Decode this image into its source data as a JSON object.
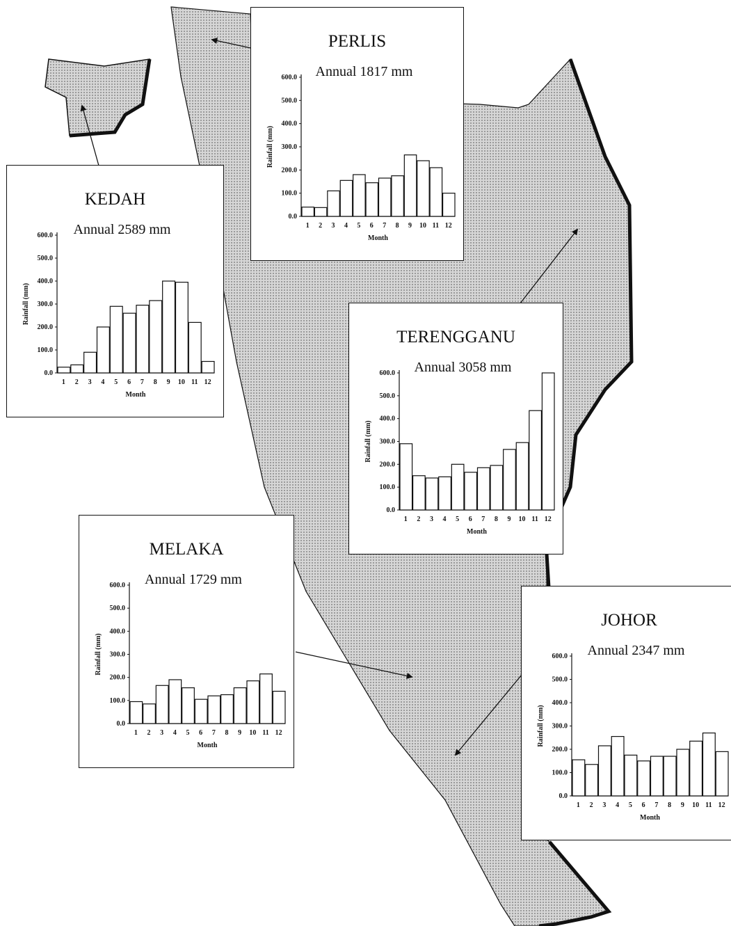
{
  "colors": {
    "land": "#c9c9c9",
    "line": "#111111",
    "panel": "#ffffff"
  },
  "chart_data": [
    {
      "type": "bar",
      "title": "PERLIS",
      "subtitle": "Annual  1817 mm",
      "xlabel": "Month",
      "ylabel": "Rainfall (mm)",
      "ylim": [
        0,
        600
      ],
      "yticks": [
        "0.0",
        "100.0",
        "200.0",
        "300.0",
        "400.0",
        "500.0",
        "600.0"
      ],
      "categories": [
        "1",
        "2",
        "3",
        "4",
        "5",
        "6",
        "7",
        "8",
        "9",
        "10",
        "11",
        "12"
      ],
      "values": [
        40,
        38,
        110,
        155,
        180,
        145,
        165,
        175,
        265,
        240,
        210,
        100
      ]
    },
    {
      "type": "bar",
      "title": "KEDAH",
      "subtitle": "Annual  2589 mm",
      "xlabel": "Month",
      "ylabel": "Rainfall (mm)",
      "ylim": [
        0,
        600
      ],
      "yticks": [
        "0.0",
        "100.0",
        "200.0",
        "300.0",
        "400.0",
        "500.0",
        "600.0"
      ],
      "categories": [
        "1",
        "2",
        "3",
        "4",
        "5",
        "6",
        "7",
        "8",
        "9",
        "10",
        "11",
        "12"
      ],
      "values": [
        25,
        35,
        90,
        200,
        290,
        260,
        295,
        315,
        400,
        395,
        220,
        50
      ]
    },
    {
      "type": "bar",
      "title": "TERENGGANU",
      "subtitle": "Annual  3058 mm",
      "xlabel": "Month",
      "ylabel": "Rainfall (mm)",
      "ylim": [
        0,
        600
      ],
      "yticks": [
        "0.0",
        "100.0",
        "200.0",
        "300.0",
        "400.0",
        "500.0",
        "600.0"
      ],
      "categories": [
        "1",
        "2",
        "3",
        "4",
        "5",
        "6",
        "7",
        "8",
        "9",
        "10",
        "11",
        "12"
      ],
      "values": [
        290,
        150,
        140,
        145,
        200,
        165,
        185,
        195,
        265,
        295,
        435,
        600
      ]
    },
    {
      "type": "bar",
      "title": "MELAKA",
      "subtitle": "Annual  1729 mm",
      "xlabel": "Month",
      "ylabel": "Rainfall (mm)",
      "ylim": [
        0,
        600
      ],
      "yticks": [
        "0.0",
        "100.0",
        "200.0",
        "300.0",
        "400.0",
        "500.0",
        "600.0"
      ],
      "categories": [
        "1",
        "2",
        "3",
        "4",
        "5",
        "6",
        "7",
        "8",
        "9",
        "10",
        "11",
        "12"
      ],
      "values": [
        95,
        85,
        165,
        190,
        155,
        105,
        120,
        125,
        155,
        185,
        215,
        140
      ]
    },
    {
      "type": "bar",
      "title": "JOHOR",
      "subtitle": "Annual  2347 mm",
      "xlabel": "Month",
      "ylabel": "Rainfall (mm)",
      "ylim": [
        0,
        600
      ],
      "yticks": [
        "0.0",
        "100.0",
        "200.0",
        "300.0",
        "400.0",
        "500.0",
        "600.0"
      ],
      "categories": [
        "1",
        "2",
        "3",
        "4",
        "5",
        "6",
        "7",
        "8",
        "9",
        "10",
        "11",
        "12"
      ],
      "values": [
        155,
        135,
        215,
        255,
        175,
        150,
        170,
        170,
        200,
        235,
        270,
        190
      ]
    }
  ]
}
